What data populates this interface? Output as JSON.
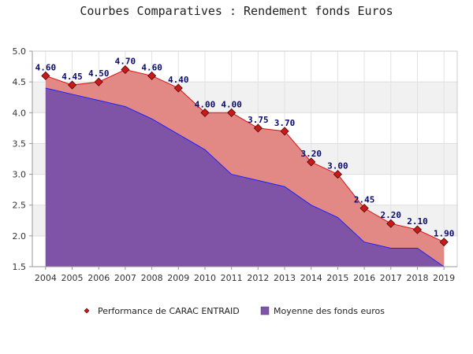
{
  "chart_data": {
    "type": "area",
    "title": "Courbes Comparatives : Rendement fonds Euros",
    "xlabel": "",
    "ylabel": "",
    "x": [
      "2004",
      "2005",
      "2006",
      "2007",
      "2008",
      "2009",
      "2010",
      "2011",
      "2012",
      "2013",
      "2014",
      "2015",
      "2016",
      "2017",
      "2018",
      "2019"
    ],
    "ylim": [
      1.5,
      5.0
    ],
    "yticks": [
      "1.5",
      "2.0",
      "2.5",
      "3.0",
      "3.5",
      "4.0",
      "4.5",
      "5.0"
    ],
    "grid": "horizontal bands",
    "legend_position": "bottom",
    "series": [
      {
        "name": "Performance de CARAC ENTRAID",
        "values": [
          4.6,
          4.45,
          4.5,
          4.7,
          4.6,
          4.4,
          4.0,
          4.0,
          3.75,
          3.7,
          3.2,
          3.0,
          2.45,
          2.2,
          2.1,
          1.9
        ],
        "labels": [
          "4.60",
          "4.45",
          "4.50",
          "4.70",
          "4.60",
          "4.40",
          "4.00",
          "4.00",
          "3.75",
          "3.70",
          "3.20",
          "3.00",
          "2.45",
          "2.20",
          "2.10",
          "1.90"
        ],
        "fill": "#e0837f",
        "line": "#e01010",
        "marker": "#c81a1a"
      },
      {
        "name": "Moyenne des fonds euros",
        "values": [
          4.4,
          4.3,
          4.2,
          4.1,
          3.9,
          3.65,
          3.4,
          3.0,
          2.9,
          2.8,
          2.5,
          2.3,
          1.9,
          1.8,
          1.8,
          1.5
        ],
        "fill": "#7f54a6",
        "line": "#2020ff"
      }
    ]
  }
}
